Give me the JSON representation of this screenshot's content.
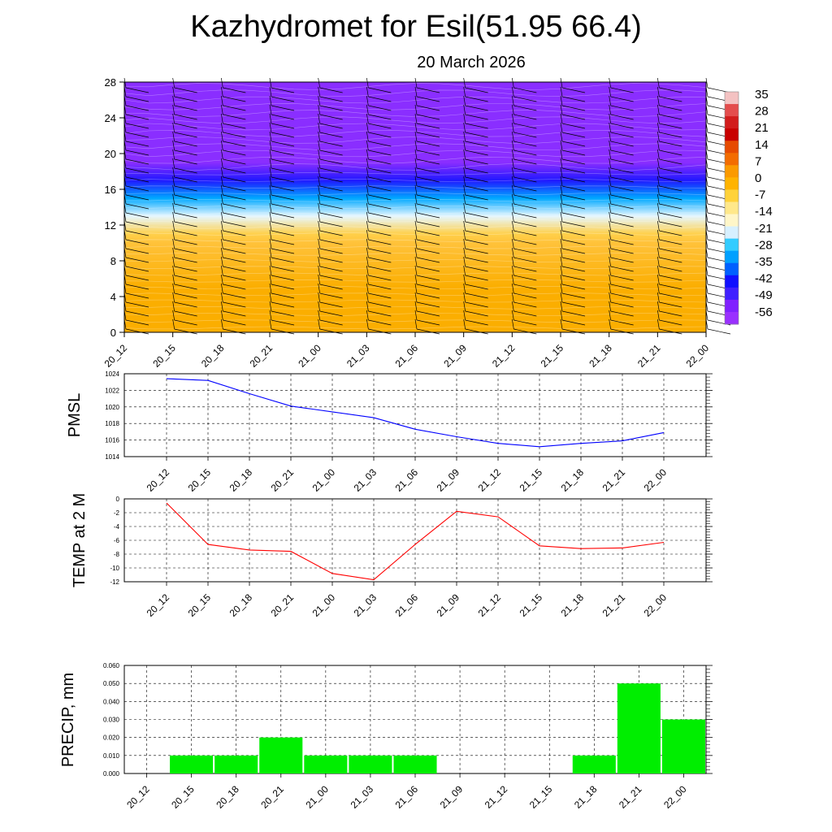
{
  "header": {
    "title": "Kazhydromet for Esil(51.95 66.4)",
    "subtitle": "20 March 2026"
  },
  "colors": {
    "pmsl_line": "#0000ff",
    "temp_line": "#ff0000",
    "precip_bar": "#00ee00",
    "grid": "#000000"
  },
  "chart_data": [
    {
      "type": "heatmap",
      "name": "vertical-temperature-wind-section",
      "x_labels": [
        "20_12",
        "20_15",
        "20_18",
        "20_21",
        "21_00",
        "21_03",
        "21_06",
        "21_09",
        "21_12",
        "21_15",
        "21_18",
        "21_21",
        "22_00"
      ],
      "y_ticks": [
        0,
        4,
        8,
        12,
        16,
        20,
        24,
        28
      ],
      "ylim": [
        0,
        28
      ],
      "colorbar": {
        "labels": [
          "35",
          "28",
          "21",
          "14",
          "7",
          "0",
          "-7",
          "-14",
          "-21",
          "-28",
          "-35",
          "-42",
          "-49",
          "-56"
        ],
        "colors": [
          "#f4c2c2",
          "#e44d4d",
          "#d21c1c",
          "#c80000",
          "#e64a00",
          "#f36c00",
          "#fb9a00",
          "#ffb300",
          "#ffd23a",
          "#ffe88a",
          "#fff6c8",
          "#d7f0ff",
          "#33ccff",
          "#00a0ff",
          "#0060ff",
          "#1010ff",
          "#4020ff",
          "#8020ff",
          "#9a30ff"
        ]
      },
      "profile": [
        {
          "level": 0,
          "value": 2
        },
        {
          "level": 5,
          "value": 5
        },
        {
          "level": 10,
          "value": 1
        },
        {
          "level": 11,
          "value": -6
        },
        {
          "level": 13,
          "value": -20
        },
        {
          "level": 15,
          "value": -40
        },
        {
          "level": 17,
          "value": -60
        },
        {
          "level": 19,
          "value": -56
        },
        {
          "level": 28,
          "value": -56
        }
      ]
    },
    {
      "type": "line",
      "name": "PMSL",
      "ylabel": "PMSL",
      "categories": [
        "20_12",
        "20_15",
        "20_18",
        "20_21",
        "21_00",
        "21_03",
        "21_06",
        "21_09",
        "21_12",
        "21_15",
        "21_18",
        "21_21",
        "22_00"
      ],
      "values": [
        1023.4,
        1023.2,
        1021.6,
        1020.1,
        1019.4,
        1018.7,
        1017.3,
        1016.4,
        1015.6,
        1015.2,
        1015.6,
        1015.9,
        1016.9
      ],
      "ylim": [
        1014,
        1024
      ],
      "y_ticks": [
        1014,
        1016,
        1018,
        1020,
        1022,
        1024
      ],
      "y_tick_labels": [
        "1014",
        "1016",
        "1018",
        "1020",
        "1022",
        "1024"
      ]
    },
    {
      "type": "line",
      "name": "TEMP",
      "ylabel": "TEMP at 2 M",
      "categories": [
        "20_12",
        "20_15",
        "20_18",
        "20_21",
        "21_00",
        "21_03",
        "21_06",
        "21_09",
        "21_12",
        "21_15",
        "21_18",
        "21_21",
        "22_00"
      ],
      "values": [
        -0.6,
        -6.6,
        -7.4,
        -7.6,
        -10.8,
        -11.7,
        -6.6,
        -1.8,
        -2.6,
        -6.8,
        -7.2,
        -7.1,
        -6.3
      ],
      "ylim": [
        -12,
        0
      ],
      "y_ticks": [
        -12,
        -10,
        -8,
        -6,
        -4,
        -2,
        0
      ],
      "y_tick_labels": [
        "-12",
        "-10",
        "-8",
        "-6",
        "-4",
        "-2",
        "0"
      ]
    },
    {
      "type": "bar",
      "name": "PRECIP",
      "ylabel": "PRECIP, mm",
      "categories": [
        "20_12",
        "20_15",
        "20_18",
        "20_21",
        "21_00",
        "21_03",
        "21_06",
        "21_09",
        "21_12",
        "21_15",
        "21_18",
        "21_21",
        "22_00"
      ],
      "values": [
        0,
        0.01,
        0.01,
        0.02,
        0.01,
        0.01,
        0.01,
        0,
        0,
        0,
        0.01,
        0.05,
        0.03
      ],
      "ylim": [
        0,
        0.06
      ],
      "y_ticks": [
        0,
        0.01,
        0.02,
        0.03,
        0.04,
        0.05,
        0.06
      ],
      "y_tick_labels": [
        "0.000",
        "0.010",
        "0.020",
        "0.030",
        "0.040",
        "0.050",
        "0.060"
      ]
    }
  ]
}
